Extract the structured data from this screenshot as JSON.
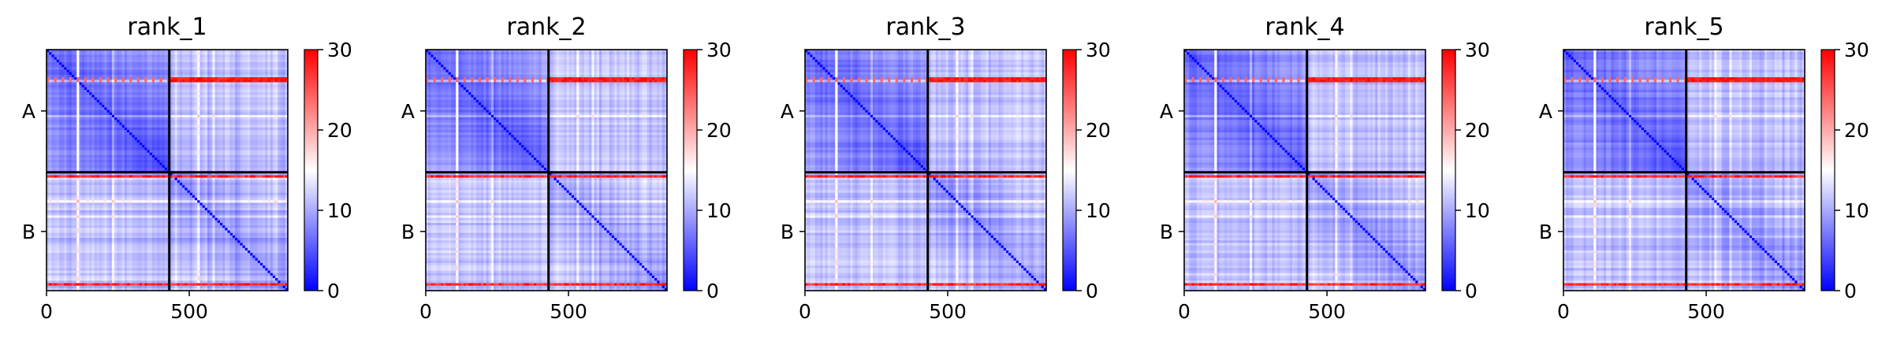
{
  "figure": {
    "panel_titles": [
      "rank_1",
      "rank_2",
      "rank_3",
      "rank_4",
      "rank_5"
    ]
  },
  "chart_data": [
    {
      "type": "heatmap",
      "title": "rank_1",
      "x_ticks": [
        0,
        500
      ],
      "xlim": [
        0,
        845
      ],
      "y_tick_labels": [
        "A",
        "B"
      ],
      "chain_boundary": 430,
      "colorbar": {
        "min": 0,
        "max": 30,
        "ticks": [
          0,
          10,
          20,
          30
        ],
        "colormap": "bwr"
      }
    },
    {
      "type": "heatmap",
      "title": "rank_2",
      "x_ticks": [
        0,
        500
      ],
      "xlim": [
        0,
        845
      ],
      "y_tick_labels": [
        "A",
        "B"
      ],
      "chain_boundary": 430,
      "colorbar": {
        "min": 0,
        "max": 30,
        "ticks": [
          0,
          10,
          20,
          30
        ],
        "colormap": "bwr"
      }
    },
    {
      "type": "heatmap",
      "title": "rank_3",
      "x_ticks": [
        0,
        500
      ],
      "xlim": [
        0,
        845
      ],
      "y_tick_labels": [
        "A",
        "B"
      ],
      "chain_boundary": 430,
      "colorbar": {
        "min": 0,
        "max": 30,
        "ticks": [
          0,
          10,
          20,
          30
        ],
        "colormap": "bwr"
      }
    },
    {
      "type": "heatmap",
      "title": "rank_4",
      "x_ticks": [
        0,
        500
      ],
      "xlim": [
        0,
        845
      ],
      "y_tick_labels": [
        "A",
        "B"
      ],
      "chain_boundary": 430,
      "colorbar": {
        "min": 0,
        "max": 30,
        "ticks": [
          0,
          10,
          20,
          30
        ],
        "colormap": "bwr"
      }
    },
    {
      "type": "heatmap",
      "title": "rank_5",
      "x_ticks": [
        0,
        500
      ],
      "xlim": [
        0,
        845
      ],
      "y_tick_labels": [
        "A",
        "B"
      ],
      "chain_boundary": 430,
      "colorbar": {
        "min": 0,
        "max": 30,
        "ticks": [
          0,
          10,
          20,
          30
        ],
        "colormap": "bwr"
      }
    }
  ]
}
